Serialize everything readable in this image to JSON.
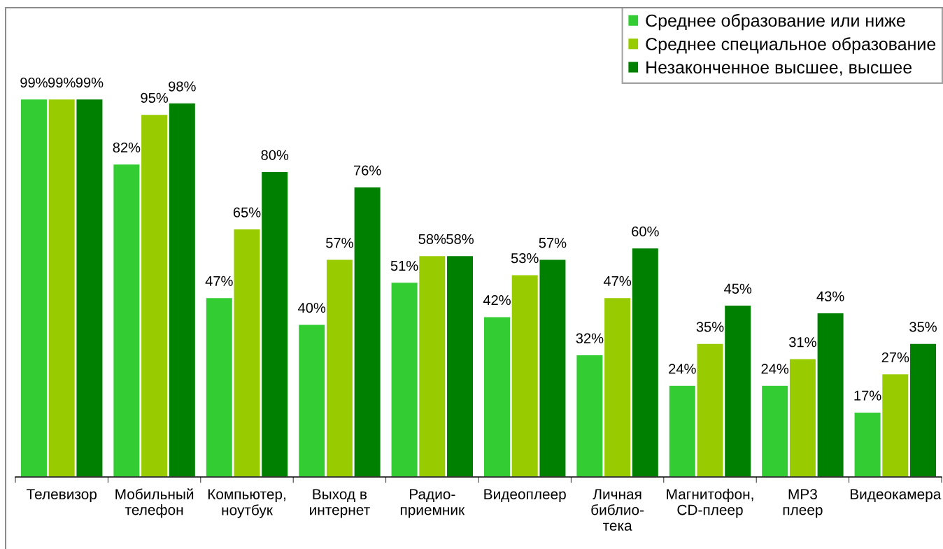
{
  "chart_data": {
    "type": "bar",
    "categories": [
      "Телевизор",
      "Мобильный\nтелефон",
      "Компьютер,\nноутбук",
      "Выход в\nинтернет",
      "Радио-\nприемник",
      "Видеоплеер",
      "Личная\nбиблио-\nтека",
      "Магнитофон,\nCD-плеер",
      "MP3\nплеер",
      "Видеокамера"
    ],
    "series": [
      {
        "name": "Среднее образование или ниже",
        "color": "#33cc33",
        "values": [
          99,
          82,
          47,
          40,
          51,
          42,
          32,
          24,
          24,
          17
        ],
        "value_labels": [
          "99%",
          "82%",
          "47%",
          "40%",
          "51%",
          "42%",
          "32%",
          "24%",
          "24%",
          "17%"
        ]
      },
      {
        "name": "Среднее специальное образование",
        "color": "#99cc00",
        "values": [
          99,
          95,
          65,
          57,
          58,
          53,
          47,
          35,
          31,
          27
        ],
        "value_labels": [
          "99%",
          "95%",
          "65%",
          "57%",
          "58%",
          "53%",
          "47%",
          "35%",
          "31%",
          "27%"
        ]
      },
      {
        "name": "Незаконченное высшее, высшее",
        "color": "#008000",
        "values": [
          99,
          98,
          80,
          76,
          58,
          57,
          60,
          45,
          43,
          35
        ],
        "value_labels": [
          "99%",
          "98%",
          "80%",
          "76%",
          "58%",
          "57%",
          "60%",
          "45%",
          "43%",
          "35%"
        ]
      }
    ],
    "legend": "top right",
    "grid": false
  }
}
